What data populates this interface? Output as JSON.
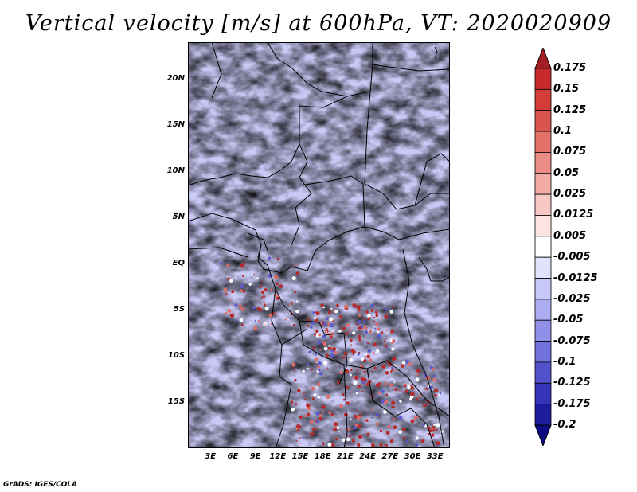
{
  "title": "Vertical velocity [m/s] at 600hPa, VT: 2020020909",
  "credit": "GrADS: IGES/COLA",
  "map": {
    "variable": "vertical velocity",
    "level": "600hPa",
    "lon_range": [
      0,
      35
    ],
    "lat_range": [
      -20,
      24
    ],
    "lat_labels": [
      {
        "value": 20,
        "label": "20N"
      },
      {
        "value": 15,
        "label": "15N"
      },
      {
        "value": 10,
        "label": "10N"
      },
      {
        "value": 5,
        "label": "5N"
      },
      {
        "value": 0,
        "label": "EQ"
      },
      {
        "value": -5,
        "label": "5S"
      },
      {
        "value": -10,
        "label": "10S"
      },
      {
        "value": -15,
        "label": "15S"
      }
    ],
    "lon_labels": [
      {
        "value": 3,
        "label": "3E"
      },
      {
        "value": 6,
        "label": "6E"
      },
      {
        "value": 9,
        "label": "9E"
      },
      {
        "value": 12,
        "label": "12E"
      },
      {
        "value": 15,
        "label": "15E"
      },
      {
        "value": 18,
        "label": "18E"
      },
      {
        "value": 21,
        "label": "21E"
      },
      {
        "value": 24,
        "label": "24E"
      },
      {
        "value": 27,
        "label": "27E"
      },
      {
        "value": 30,
        "label": "30E"
      },
      {
        "value": 33,
        "label": "33E"
      }
    ]
  },
  "colorbar": {
    "labels": [
      "0.175",
      "0.15",
      "0.125",
      "0.1",
      "0.075",
      "0.05",
      "0.025",
      "0.0125",
      "0.005",
      "-0.005",
      "-0.0125",
      "-0.025",
      "-0.05",
      "-0.075",
      "-0.1",
      "-0.125",
      "-0.175",
      "-0.2"
    ],
    "colors": [
      "#a41e23",
      "#c62a2a",
      "#d43c38",
      "#dc5450",
      "#e4706a",
      "#ec8c86",
      "#f2aaa4",
      "#f8c8c4",
      "#fce4e0",
      "#ffffff",
      "#e2e2fc",
      "#c8c8f8",
      "#acacf0",
      "#9090e8",
      "#7272dc",
      "#5252cc",
      "#3434b8",
      "#1c1c9c",
      "#0c0c80"
    ]
  }
}
